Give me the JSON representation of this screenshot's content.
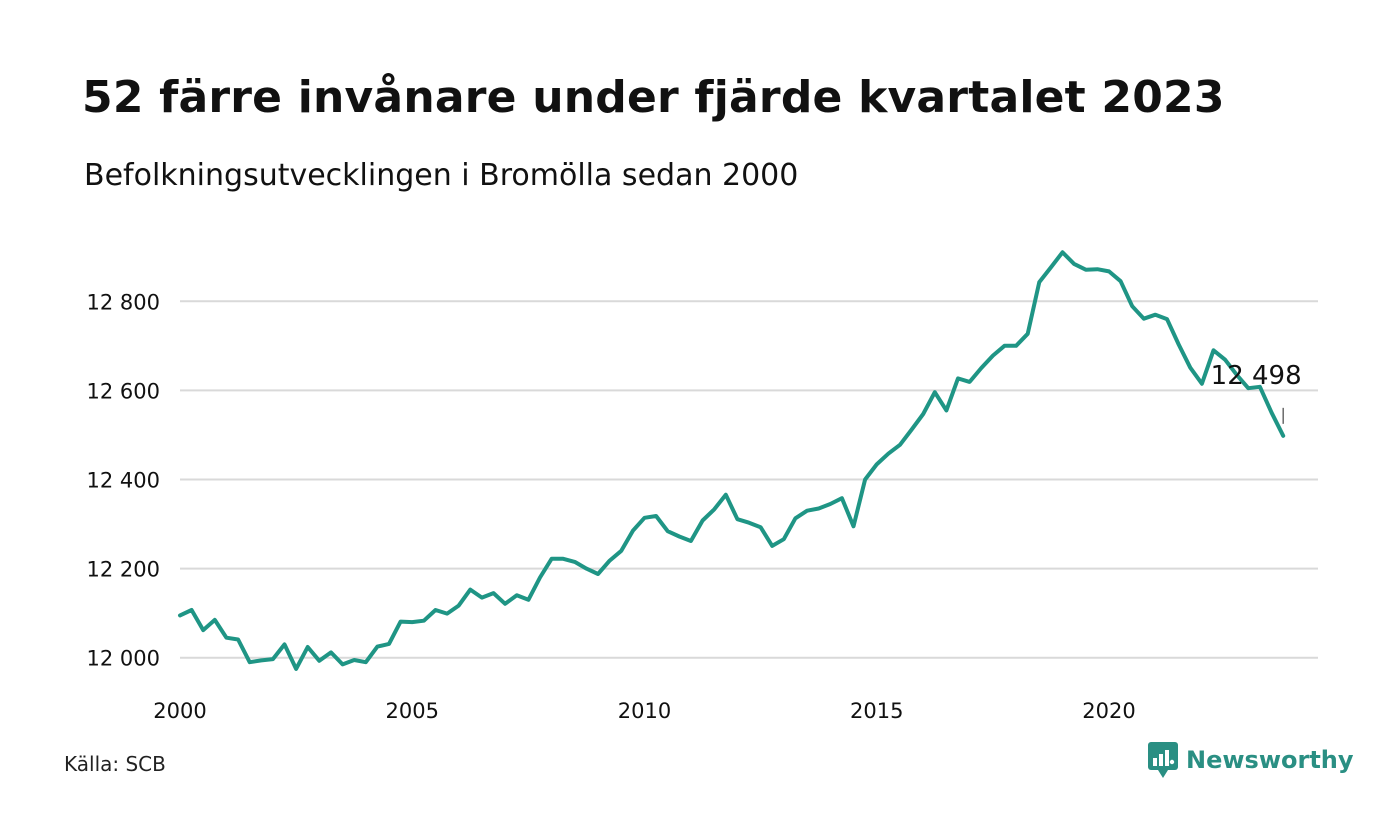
{
  "title": "52 färre invånare under fjärde kvartalet 2023",
  "subtitle": "Befolkningsutvecklingen i Bromölla sedan 2000",
  "source": "Källa: SCB",
  "brand": {
    "name": "Newsworthy",
    "color": "#2a8f83",
    "icon": "bar-chart-speech-bubble-icon"
  },
  "colors": {
    "line": "#1f9585",
    "grid": "#d9d9d9"
  },
  "chart_data": {
    "type": "line",
    "title": "",
    "xlabel": "",
    "ylabel": "",
    "xlim": [
      2000,
      2024.5
    ],
    "ylim": [
      11950,
      12960
    ],
    "grid": true,
    "x_ticks": [
      {
        "value": 2000,
        "label": "2000"
      },
      {
        "value": 2005,
        "label": "2005"
      },
      {
        "value": 2010,
        "label": "2010"
      },
      {
        "value": 2015,
        "label": "2015"
      },
      {
        "value": 2020,
        "label": "2020"
      }
    ],
    "y_ticks": [
      {
        "value": 12000,
        "label": "12 000"
      },
      {
        "value": 12200,
        "label": "12 200"
      },
      {
        "value": 12400,
        "label": "12 400"
      },
      {
        "value": 12600,
        "label": "12 600"
      },
      {
        "value": 12800,
        "label": "12 800"
      }
    ],
    "annotation": {
      "x": 2023.75,
      "y": 12498,
      "label": "12 498"
    },
    "series": [
      {
        "name": "",
        "x": [
          2000.0,
          2000.25,
          2000.5,
          2000.75,
          2001.0,
          2001.25,
          2001.5,
          2001.75,
          2002.0,
          2002.25,
          2002.5,
          2002.75,
          2003.0,
          2003.25,
          2003.5,
          2003.75,
          2004.0,
          2004.25,
          2004.5,
          2004.75,
          2005.0,
          2005.25,
          2005.5,
          2005.75,
          2006.0,
          2006.25,
          2006.5,
          2006.75,
          2007.0,
          2007.25,
          2007.5,
          2007.75,
          2008.0,
          2008.25,
          2008.5,
          2008.75,
          2009.0,
          2009.25,
          2009.5,
          2009.75,
          2010.0,
          2010.25,
          2010.5,
          2010.75,
          2011.0,
          2011.25,
          2011.5,
          2011.75,
          2012.0,
          2012.25,
          2012.5,
          2012.75,
          2013.0,
          2013.25,
          2013.5,
          2013.75,
          2014.0,
          2014.25,
          2014.5,
          2014.75,
          2015.0,
          2015.25,
          2015.5,
          2015.75,
          2016.0,
          2016.25,
          2016.5,
          2016.75,
          2017.0,
          2017.25,
          2017.5,
          2017.75,
          2018.0,
          2018.25,
          2018.5,
          2018.75,
          2019.0,
          2019.25,
          2019.5,
          2019.75,
          2020.0,
          2020.25,
          2020.5,
          2020.75,
          2021.0,
          2021.25,
          2021.5,
          2021.75,
          2022.0,
          2022.25,
          2022.5,
          2022.75,
          2023.0,
          2023.25,
          2023.5,
          2023.75
        ],
        "y": [
          12095,
          12107,
          12062,
          12085,
          12045,
          12041,
          11990,
          11994,
          11997,
          12030,
          11975,
          12024,
          11993,
          12012,
          11985,
          11995,
          11990,
          12025,
          12031,
          12081,
          12080,
          12083,
          12107,
          12099,
          12117,
          12153,
          12135,
          12145,
          12121,
          12140,
          12130,
          12180,
          12222,
          12222,
          12215,
          12200,
          12188,
          12218,
          12240,
          12285,
          12314,
          12318,
          12284,
          12272,
          12262,
          12308,
          12333,
          12366,
          12311,
          12303,
          12293,
          12251,
          12266,
          12313,
          12330,
          12335,
          12345,
          12358,
          12295,
          12400,
          12434,
          12458,
          12478,
          12512,
          12547,
          12596,
          12555,
          12627,
          12619,
          12650,
          12678,
          12700,
          12700,
          12727,
          12843,
          12876,
          12910,
          12884,
          12871,
          12872,
          12867,
          12845,
          12789,
          12761,
          12770,
          12760,
          12703,
          12651,
          12615,
          12690,
          12669,
          12635,
          12605,
          12608,
          12550,
          12498
        ]
      }
    ]
  }
}
